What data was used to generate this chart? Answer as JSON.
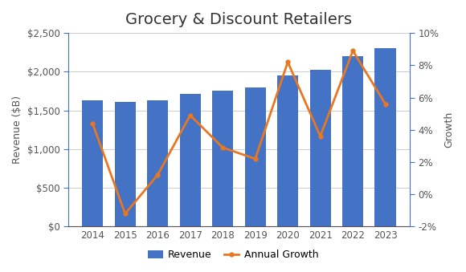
{
  "title": "Grocery & Discount Retailers",
  "years": [
    2014,
    2015,
    2016,
    2017,
    2018,
    2019,
    2020,
    2021,
    2022,
    2023
  ],
  "revenue": [
    1630,
    1610,
    1630,
    1710,
    1760,
    1800,
    1950,
    2020,
    2200,
    2300
  ],
  "growth": [
    0.044,
    -0.012,
    0.012,
    0.049,
    0.029,
    0.022,
    0.082,
    0.036,
    0.089,
    0.056
  ],
  "bar_color": "#4472C4",
  "line_color": "#E87722",
  "left_ylim": [
    0,
    2500
  ],
  "right_ylim": [
    -0.02,
    0.1
  ],
  "left_yticks": [
    0,
    500,
    1000,
    1500,
    2000,
    2500
  ],
  "right_yticks": [
    -0.02,
    0.0,
    0.02,
    0.04,
    0.06,
    0.08,
    0.1
  ],
  "ylabel_left": "Revenue ($B)",
  "ylabel_right": "Growth",
  "title_fontsize": 14,
  "axis_label_fontsize": 9,
  "tick_fontsize": 8.5,
  "legend_fontsize": 9,
  "background_color": "#ffffff",
  "grid_color": "#d0d0d0",
  "spine_color": "#4472C4",
  "text_color": "#555555"
}
